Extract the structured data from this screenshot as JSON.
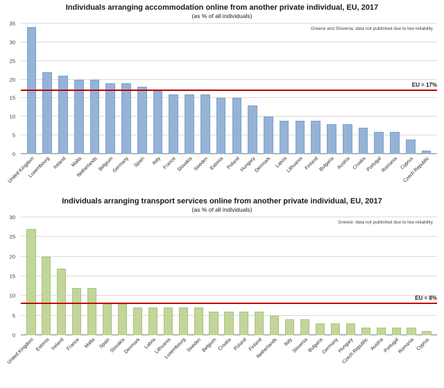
{
  "chart_data": [
    {
      "type": "bar",
      "title": "Individuals arranging accommodation online from another private individual, EU, 2017",
      "subtitle": "(as % of all individuals)",
      "note": "Greece and Slovenia: data not published due to low reliability",
      "eu_line": {
        "value": 17,
        "label": "EU = 17%"
      },
      "ylim": [
        0,
        35
      ],
      "ytick_step": 5,
      "bar_color": "#95b3d7",
      "bar_border": "#7da0c8",
      "grid": "on",
      "categories": [
        "United Kingdom",
        "Luxembourg",
        "Ireland",
        "Malta",
        "Netherlands",
        "Belgium",
        "Germany",
        "Spain",
        "Italy",
        "France",
        "Slovakia",
        "Sweden",
        "Estonia",
        "Poland",
        "Hungary",
        "Denmark",
        "Latvia",
        "Lithuania",
        "Finland",
        "Bulgaria",
        "Austria",
        "Croatia",
        "Portugal",
        "Romania",
        "Cyprus",
        "Czech Republic"
      ],
      "values": [
        34,
        22,
        21,
        20,
        20,
        19,
        19,
        18,
        17,
        16,
        16,
        16,
        15,
        15,
        13,
        10,
        9,
        9,
        9,
        8,
        8,
        7,
        6,
        6,
        4,
        1
      ]
    },
    {
      "type": "bar",
      "title": "Individuals arranging transport services online from another private individual, EU, 2017",
      "subtitle": "(as % of all individuals)",
      "note": "Greece: data not published due to low reliability",
      "eu_line": {
        "value": 8,
        "label": "EU = 8%"
      },
      "ylim": [
        0,
        30
      ],
      "ytick_step": 5,
      "bar_color": "#c2d69a",
      "bar_border": "#a9c27e",
      "grid": "on",
      "categories": [
        "United Kingdom",
        "Estonia",
        "Ireland",
        "France",
        "Malta",
        "Spain",
        "Slovakia",
        "Denmark",
        "Latvia",
        "Lithuania",
        "Luxembourg",
        "Sweden",
        "Belgium",
        "Croatia",
        "Poland",
        "Finland",
        "Netherlands",
        "Italy",
        "Slovenia",
        "Bulgaria",
        "Germany",
        "Hungary",
        "Czech Republic",
        "Austria",
        "Portugal",
        "Romania",
        "Cyprus"
      ],
      "values": [
        27,
        20,
        17,
        12,
        12,
        8,
        8,
        7,
        7,
        7,
        7,
        7,
        6,
        6,
        6,
        6,
        5,
        4,
        4,
        3,
        3,
        3,
        2,
        2,
        2,
        2,
        1
      ]
    }
  ]
}
